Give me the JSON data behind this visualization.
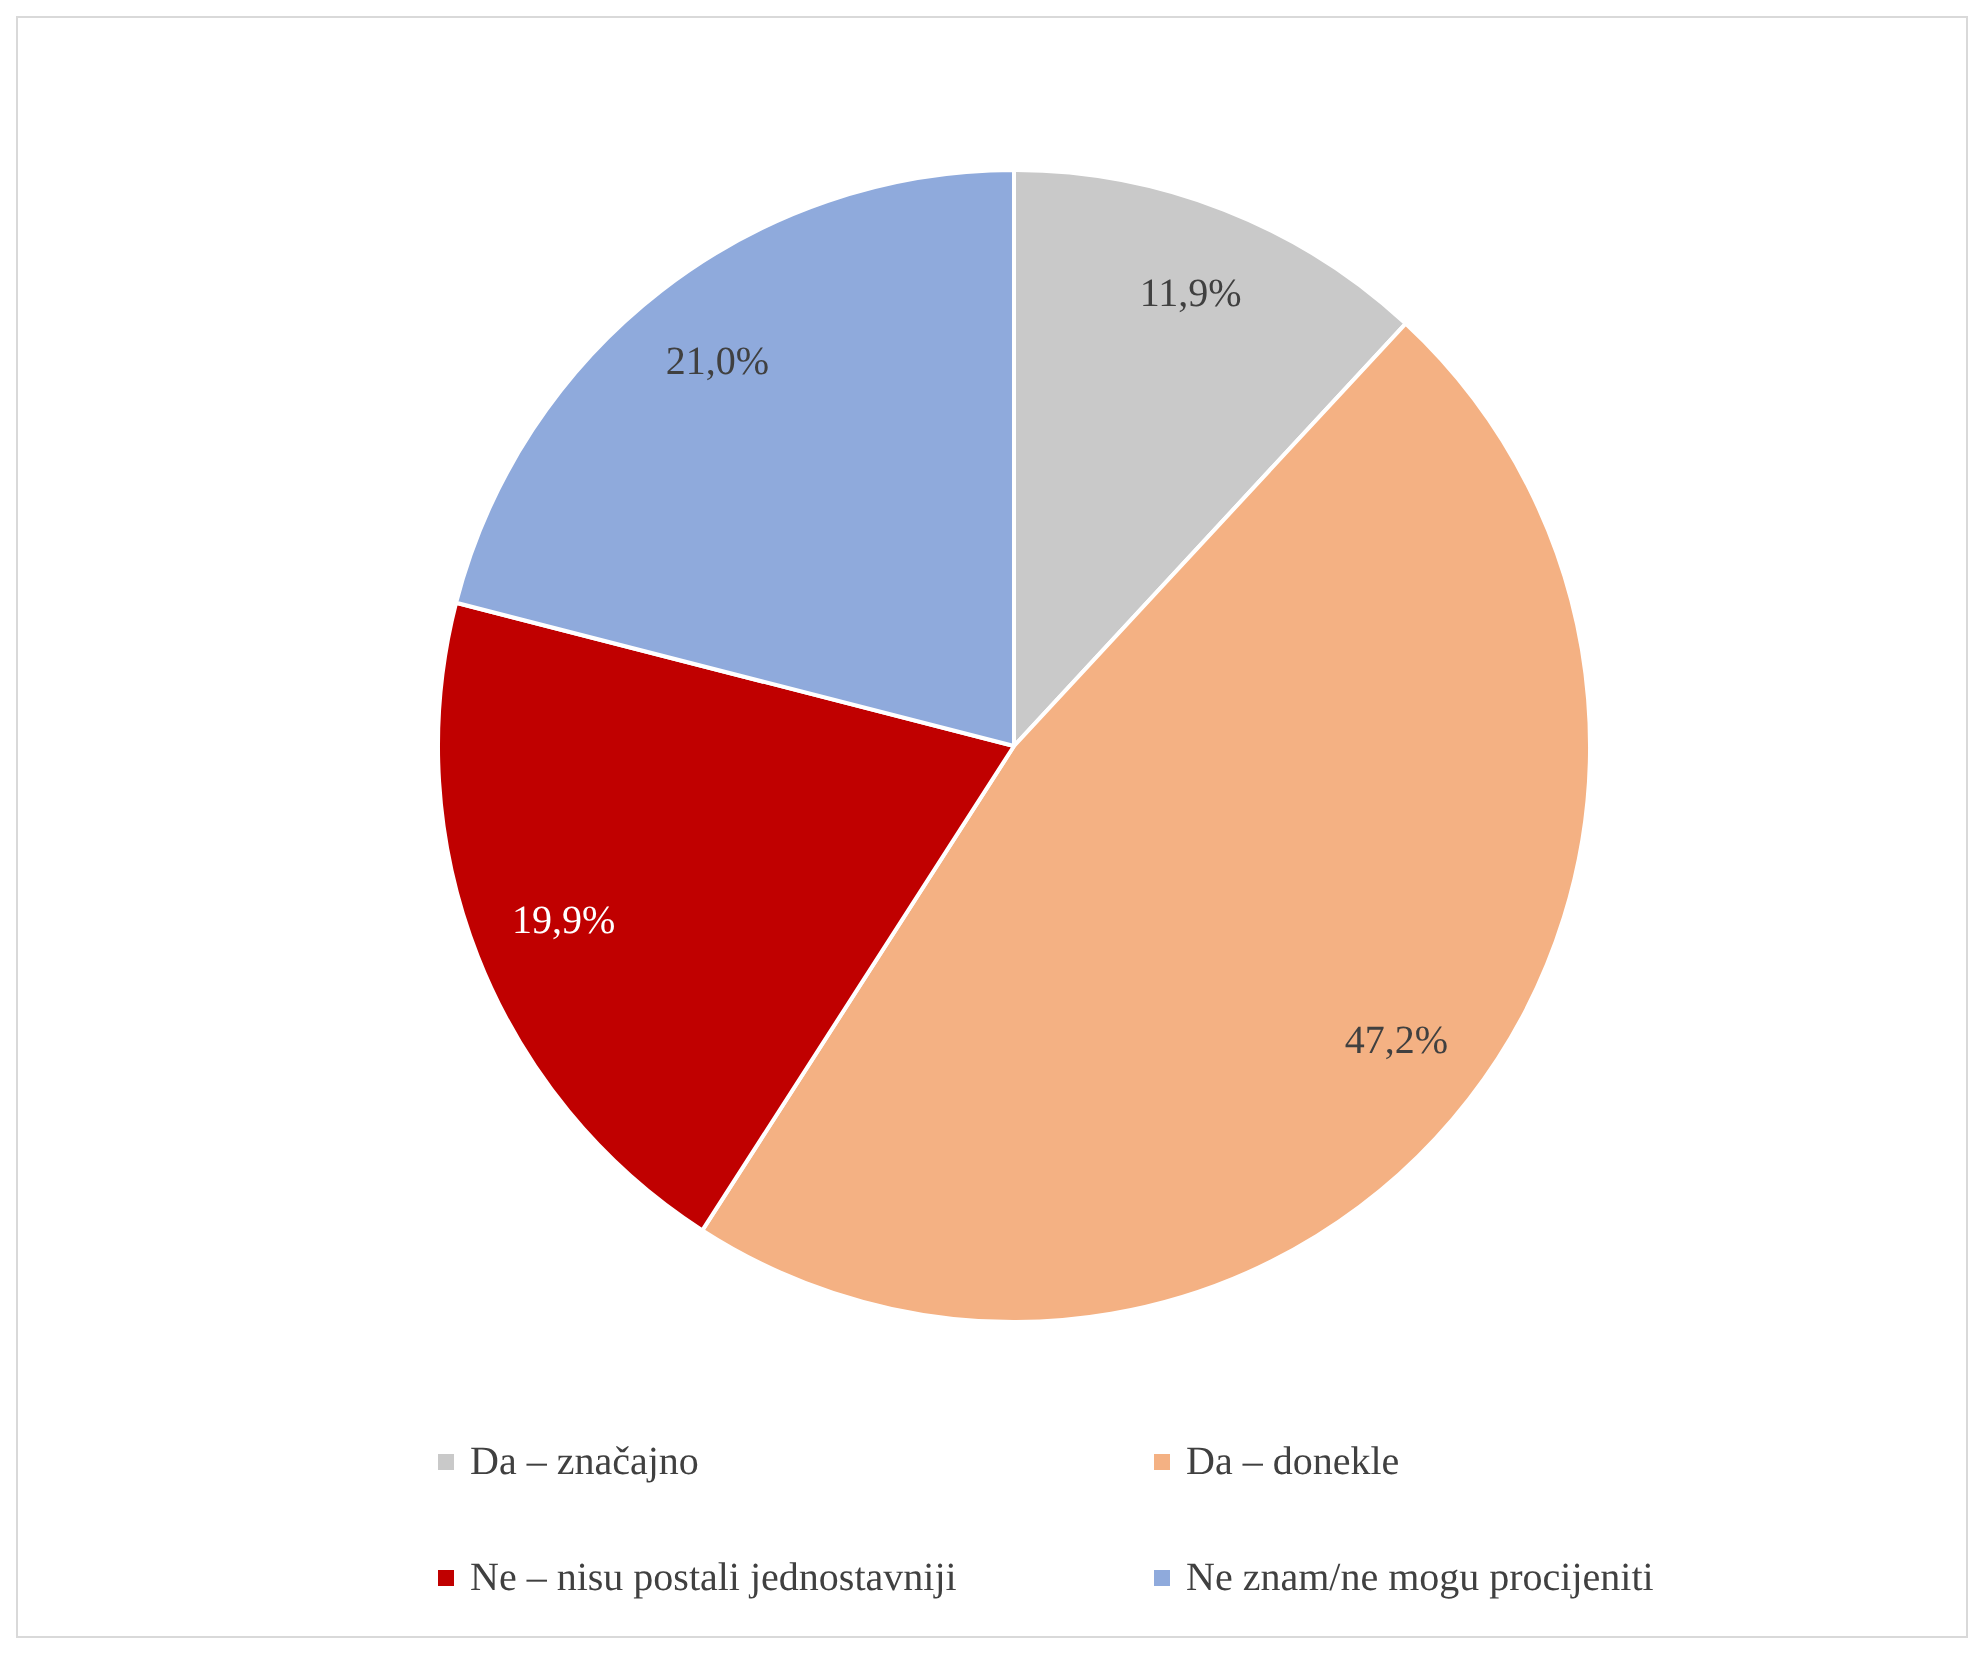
{
  "chart_data": {
    "type": "pie",
    "categories": [
      "Da – značajno",
      "Da – donekle",
      "Ne – nisu postali jednostavniji",
      "Ne znam/ne mogu procijeniti"
    ],
    "values": [
      11.9,
      47.2,
      19.9,
      21.0
    ],
    "colors": [
      "#c9c9c9",
      "#f4b183",
      "#c00000",
      "#8faadc"
    ],
    "value_labels": [
      "11,9%",
      "47,2%",
      "19,9%",
      "21,0%"
    ],
    "legend": "bottom"
  }
}
